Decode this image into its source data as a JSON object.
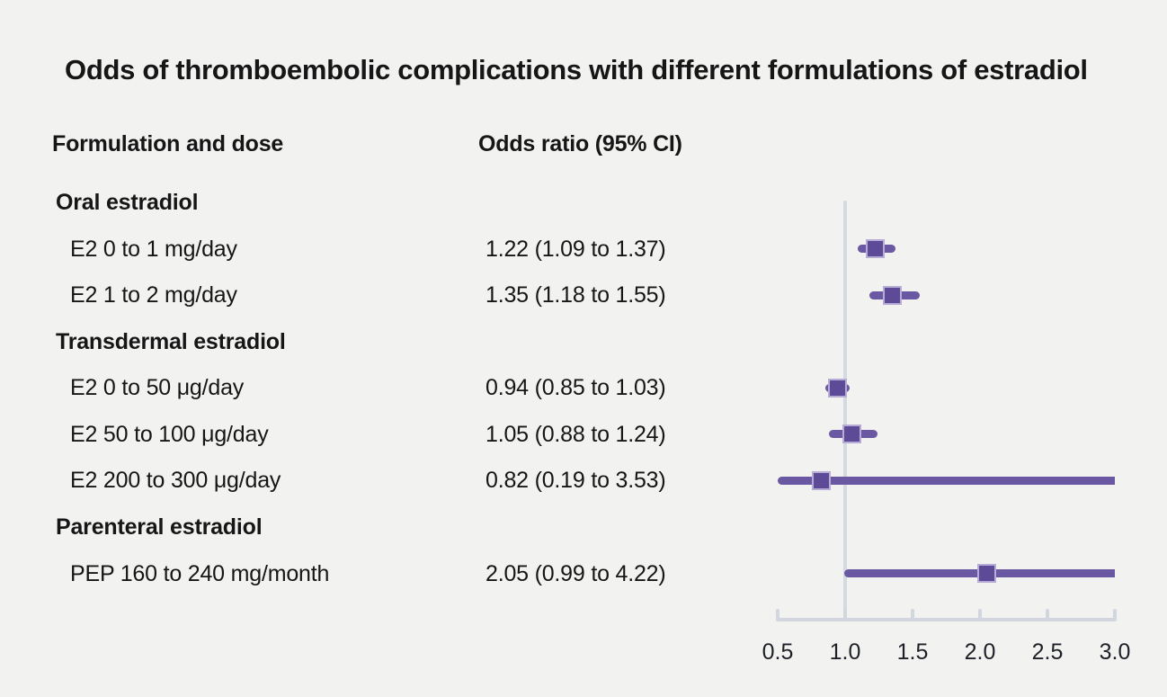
{
  "title": "Odds of thromboembolic complications with different formulations of estradiol",
  "columns": {
    "formulation": "Formulation and dose",
    "odds_ratio": "Odds ratio (95% CI)"
  },
  "colors": {
    "background": "#f2f2f1",
    "text": "#161616",
    "ci_line": "#6a58a2",
    "marker": "#5d4b97",
    "axis": "#d2d6de",
    "reference_line": "#d5d9e1"
  },
  "chart_data": {
    "type": "scatter",
    "subtype": "forest-plot",
    "title": "Odds of thromboembolic complications with different formulations of estradiol",
    "xlabel": "Odds ratio (95% CI)",
    "xlim": [
      0.5,
      3.0
    ],
    "x_ticks": [
      0.5,
      1.0,
      1.5,
      2.0,
      2.5,
      3.0
    ],
    "x_tick_labels": [
      "0.5",
      "1.0",
      "1.5",
      "2.0",
      "2.5",
      "3.0"
    ],
    "reference_line_x": 1.0,
    "ci_clipped_to_xlim": true,
    "grid": false,
    "legend": false,
    "rows": [
      {
        "type": "group",
        "label": "Oral estradiol"
      },
      {
        "type": "item",
        "label": "E2 0 to 1 mg/day",
        "value_text": "1.22 (1.09 to 1.37)",
        "or": 1.22,
        "ci_low": 1.09,
        "ci_high": 1.37
      },
      {
        "type": "item",
        "label": "E2 1 to 2 mg/day",
        "value_text": "1.35 (1.18 to 1.55)",
        "or": 1.35,
        "ci_low": 1.18,
        "ci_high": 1.55
      },
      {
        "type": "group",
        "label": "Transdermal estradiol"
      },
      {
        "type": "item",
        "label": "E2 0 to 50 μg/day",
        "value_text": "0.94 (0.85 to 1.03)",
        "or": 0.94,
        "ci_low": 0.85,
        "ci_high": 1.03
      },
      {
        "type": "item",
        "label": "E2 50 to 100 μg/day",
        "value_text": "1.05 (0.88 to 1.24)",
        "or": 1.05,
        "ci_low": 0.88,
        "ci_high": 1.24
      },
      {
        "type": "item",
        "label": "E2 200 to 300 μg/day",
        "value_text": "0.82 (0.19 to 3.53)",
        "or": 0.82,
        "ci_low": 0.19,
        "ci_high": 3.53
      },
      {
        "type": "group",
        "label": "Parenteral estradiol"
      },
      {
        "type": "item",
        "label": "PEP 160 to 240 mg/month",
        "value_text": "2.05 (0.99 to 4.22)",
        "or": 2.05,
        "ci_low": 0.99,
        "ci_high": 4.22
      }
    ]
  }
}
